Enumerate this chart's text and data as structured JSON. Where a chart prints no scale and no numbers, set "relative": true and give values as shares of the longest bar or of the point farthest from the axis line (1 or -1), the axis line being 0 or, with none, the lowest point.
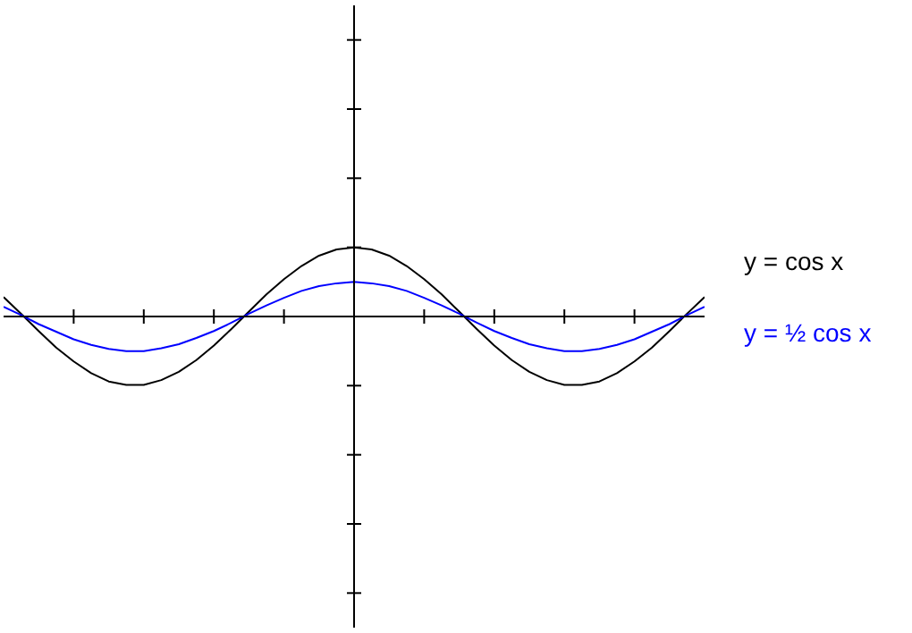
{
  "chart_data": {
    "type": "line",
    "relative": true,
    "legend": "right",
    "grid": false,
    "marker": "none",
    "line_style": "solid",
    "categories": [
      null,
      null,
      null,
      null,
      null,
      null,
      null,
      null,
      null,
      null,
      null,
      null,
      null,
      null,
      null,
      null,
      null,
      null,
      null,
      null,
      null,
      null,
      null,
      null,
      null,
      null,
      null,
      null,
      null,
      null,
      null,
      null,
      null,
      null,
      null,
      null,
      null,
      null,
      null,
      null,
      null
    ],
    "series": [
      {
        "name": "y = cos x",
        "color": "#000000",
        "values": [
          0.28,
          0.04,
          -0.21,
          -0.45,
          -0.65,
          -0.82,
          -0.94,
          -0.99,
          -0.99,
          -0.92,
          -0.8,
          -0.63,
          -0.42,
          -0.18,
          0.07,
          0.32,
          0.54,
          0.73,
          0.88,
          0.97,
          1,
          0.97,
          0.88,
          0.73,
          0.54,
          0.32,
          0.07,
          -0.18,
          -0.42,
          -0.63,
          -0.8,
          -0.92,
          -0.99,
          -0.99,
          -0.94,
          -0.82,
          -0.65,
          -0.45,
          -0.21,
          0.04,
          0.28
        ]
      },
      {
        "name": "y = ½ cos x",
        "color": "#0000ff",
        "values": [
          0.14,
          0.02,
          -0.11,
          -0.22,
          -0.33,
          -0.41,
          -0.47,
          -0.5,
          -0.5,
          -0.46,
          -0.4,
          -0.31,
          -0.21,
          -0.09,
          0.04,
          0.16,
          0.27,
          0.37,
          0.44,
          0.48,
          0.5,
          0.48,
          0.44,
          0.37,
          0.27,
          0.16,
          0.04,
          -0.09,
          -0.21,
          -0.31,
          -0.4,
          -0.46,
          -0.5,
          -0.5,
          -0.47,
          -0.41,
          -0.33,
          -0.22,
          -0.11,
          0.02,
          0.14
        ]
      }
    ]
  }
}
